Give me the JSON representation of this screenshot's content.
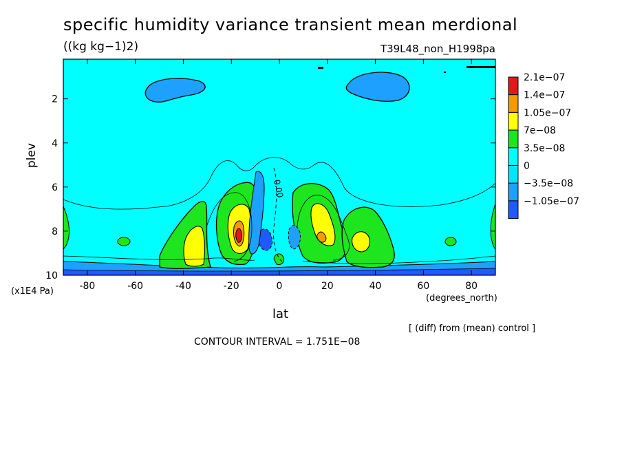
{
  "chart_data": {
    "type": "contour",
    "title": "specific humidity variance transient mean merdional",
    "units": "((kg kg−1)2)",
    "experiment": "T39L48_non_H1998pa",
    "xlabel": "lat",
    "xunits": "(degrees_north)",
    "ylabel": "plev",
    "yscale_label": "(x1E4 Pa)",
    "xlim": [
      -90,
      90
    ],
    "ylim": [
      10,
      0.2
    ],
    "xticks": [
      -80,
      -60,
      -40,
      -20,
      0,
      20,
      40,
      60,
      80
    ],
    "yticks": [
      2,
      4,
      6,
      8,
      10
    ],
    "legend": {
      "placement": "right",
      "labels": [
        "2.1e−07",
        "1.4e−07",
        "1.05e−07",
        "7e−08",
        "3.5e−08",
        "0",
        "−3.5e−08",
        "−1.05e−07"
      ],
      "colors": [
        "#e01a1a",
        "#f59a00",
        "#ffff00",
        "#1ee61e",
        "#00ffff",
        "#00e5ff",
        "#1ea0ff",
        "#1e5aff"
      ]
    },
    "contour_label": "0.00",
    "footnote": "[ (diff) from (mean) control ]",
    "contour_interval": "CONTOUR INTERVAL = 1.751E−08",
    "features": [
      {
        "region": "-47..-28",
        "plev": "6.5..10",
        "max": 1.2e-07
      },
      {
        "region": "-22..-13",
        "plev": "6.0..10",
        "max": 2.1e-07
      },
      {
        "region": "10..24",
        "plev": "6.0..9.5",
        "max": 1.6e-07
      },
      {
        "region": "28..44",
        "plev": "6.5..10",
        "max": 1.2e-07
      },
      {
        "region": "-60..-30",
        "plev": "1.0..1.7",
        "min": -6e-08
      },
      {
        "region": "27..52",
        "plev": "0.7..1.8",
        "min": -6e-08
      }
    ]
  }
}
